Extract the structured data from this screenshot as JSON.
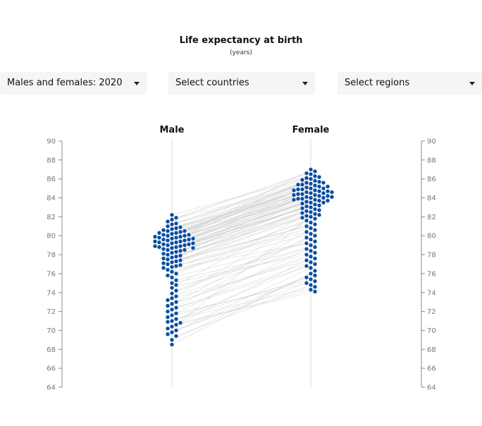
{
  "header": {
    "title": "Life expectancy at birth",
    "subtitle": "(years)"
  },
  "filters": {
    "sex_year": "Males and females: 2020",
    "countries": "Select countries",
    "regions": "Select regions"
  },
  "colors": {
    "dot": "#0b4ea2",
    "dot_stroke": "#ffffff",
    "link": "#c8c8c8",
    "axis": "#888888",
    "dropdown_bg": "#f5f5f5"
  },
  "chart_data": {
    "type": "scatter",
    "subtype": "slope-beeswarm",
    "categories": [
      "Male",
      "Female"
    ],
    "ylim": [
      64,
      90
    ],
    "yticks": [
      64,
      66,
      68,
      70,
      72,
      74,
      76,
      78,
      80,
      82,
      84,
      86,
      88,
      90
    ],
    "grid": false,
    "series": [
      {
        "name": "Male",
        "values": [
          82.2,
          81.9,
          81.7,
          81.5,
          81.3,
          81.2,
          81.0,
          80.9,
          80.8,
          80.7,
          80.6,
          80.5,
          80.5,
          80.4,
          80.3,
          80.3,
          80.2,
          80.1,
          80.1,
          80.0,
          80.0,
          79.9,
          79.9,
          79.8,
          79.8,
          79.7,
          79.7,
          79.6,
          79.6,
          79.5,
          79.5,
          79.4,
          79.4,
          79.3,
          79.3,
          79.2,
          79.2,
          79.1,
          79.1,
          79.0,
          79.0,
          78.9,
          78.9,
          78.8,
          78.8,
          78.7,
          78.7,
          78.6,
          78.5,
          78.5,
          78.4,
          78.3,
          78.2,
          78.1,
          78.0,
          77.9,
          77.8,
          77.7,
          77.6,
          77.5,
          77.4,
          77.3,
          77.2,
          77.1,
          77.0,
          76.9,
          76.8,
          76.7,
          76.6,
          76.4,
          76.2,
          76.0,
          75.8,
          75.6,
          75.3,
          75.0,
          74.8,
          74.5,
          74.2,
          73.9,
          73.6,
          73.4,
          73.2,
          73.0,
          72.8,
          72.6,
          72.4,
          72.2,
          72.0,
          71.8,
          71.6,
          71.4,
          71.2,
          71.0,
          70.9,
          70.8,
          70.6,
          70.4,
          70.2,
          70.0,
          69.8,
          69.6,
          69.4,
          69.0,
          68.5
        ],
        "color": "#0b4ea2"
      },
      {
        "name": "Female",
        "values": [
          87.0,
          86.8,
          86.6,
          86.5,
          86.3,
          86.2,
          86.1,
          86.0,
          85.9,
          85.8,
          85.7,
          85.6,
          85.6,
          85.5,
          85.4,
          85.4,
          85.3,
          85.2,
          85.2,
          85.1,
          85.0,
          85.0,
          84.9,
          84.9,
          84.8,
          84.8,
          84.7,
          84.7,
          84.6,
          84.6,
          84.5,
          84.5,
          84.4,
          84.4,
          84.3,
          84.3,
          84.2,
          84.2,
          84.1,
          84.1,
          84.0,
          84.0,
          83.9,
          83.9,
          83.8,
          83.8,
          83.7,
          83.7,
          83.6,
          83.5,
          83.5,
          83.4,
          83.3,
          83.2,
          83.1,
          83.0,
          82.9,
          82.8,
          82.7,
          82.6,
          82.5,
          82.4,
          82.3,
          82.2,
          82.1,
          82.0,
          81.9,
          81.8,
          81.6,
          81.4,
          81.2,
          81.0,
          80.8,
          80.6,
          80.4,
          80.2,
          80.0,
          79.8,
          79.6,
          79.4,
          79.2,
          79.0,
          78.8,
          78.6,
          78.4,
          78.2,
          78.0,
          77.8,
          77.6,
          77.4,
          77.2,
          77.0,
          76.8,
          76.6,
          76.3,
          76.0,
          75.8,
          75.6,
          75.4,
          75.2,
          75.0,
          74.8,
          74.6,
          74.3,
          74.1
        ],
        "color": "#0b4ea2"
      }
    ]
  }
}
